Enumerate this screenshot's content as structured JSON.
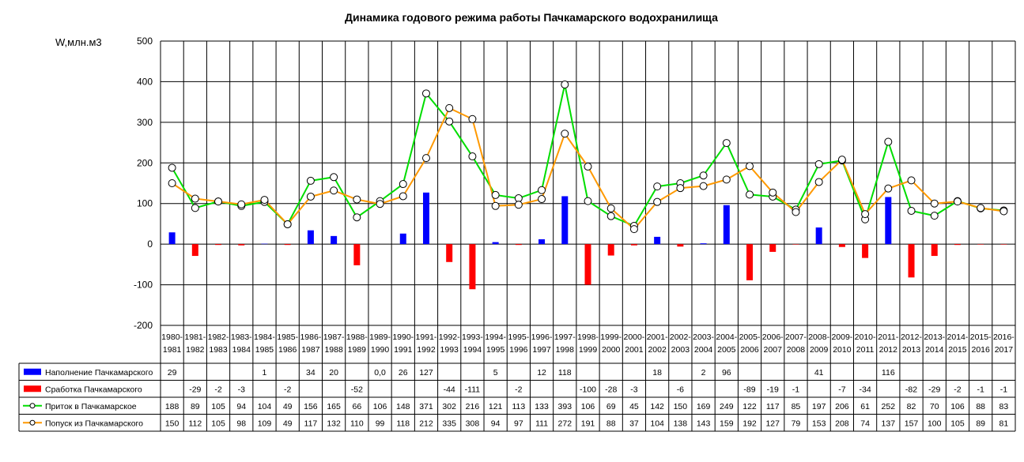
{
  "chart_data": {
    "type": "bar+line",
    "title": "Динамика годового режима работы Пачкамарского водохранилища",
    "ylabel": "W,млн.м3",
    "ylim": [
      -200,
      500
    ],
    "yticks": [
      500,
      400,
      300,
      200,
      100,
      0,
      -100,
      -200
    ],
    "grid": true,
    "legend_placement": "data-table-left",
    "categories": [
      [
        "1980-",
        "1981"
      ],
      [
        "1981-",
        "1982"
      ],
      [
        "1982-",
        "1983"
      ],
      [
        "1983-",
        "1984"
      ],
      [
        "1984-",
        "1985"
      ],
      [
        "1985-",
        "1986"
      ],
      [
        "1986-",
        "1987"
      ],
      [
        "1987-",
        "1988"
      ],
      [
        "1988-",
        "1989"
      ],
      [
        "1989-",
        "1990"
      ],
      [
        "1990-",
        "1991"
      ],
      [
        "1991-",
        "1992"
      ],
      [
        "1992-",
        "1993"
      ],
      [
        "1993-",
        "1994"
      ],
      [
        "1994-",
        "1995"
      ],
      [
        "1995-",
        "1996"
      ],
      [
        "1996-",
        "1997"
      ],
      [
        "1997-",
        "1998"
      ],
      [
        "1998-",
        "1999"
      ],
      [
        "1999-",
        "2000"
      ],
      [
        "2000-",
        "2001"
      ],
      [
        "2001-",
        "2002"
      ],
      [
        "2002-",
        "2003"
      ],
      [
        "2003-",
        "2004"
      ],
      [
        "2004-",
        "2005"
      ],
      [
        "2005-",
        "2006"
      ],
      [
        "2006-",
        "2007"
      ],
      [
        "2007-",
        "2008"
      ],
      [
        "2008-",
        "2009"
      ],
      [
        "2009-",
        "2010"
      ],
      [
        "2010-",
        "2011"
      ],
      [
        "2011-",
        "2012"
      ],
      [
        "2012-",
        "2013"
      ],
      [
        "2013-",
        "2014"
      ],
      [
        "2014-",
        "2015"
      ],
      [
        "2015-",
        "2016"
      ],
      [
        "2016-",
        "2017"
      ]
    ],
    "series": [
      {
        "name": "Наполнение Пачкамарского",
        "kind": "bar",
        "color": "#0000ff",
        "values": [
          29,
          null,
          null,
          null,
          1,
          null,
          34,
          20,
          null,
          0.0,
          26,
          127,
          null,
          null,
          5,
          null,
          12,
          118,
          null,
          null,
          null,
          18,
          null,
          2,
          96,
          null,
          null,
          null,
          41,
          null,
          null,
          116,
          null,
          null,
          null,
          null,
          null
        ],
        "labels": [
          "29",
          "",
          "",
          "",
          "1",
          "",
          "34",
          "20",
          "",
          "0,0",
          "26",
          "127",
          "",
          "",
          "5",
          "",
          "12",
          "118",
          "",
          "",
          "",
          "18",
          "",
          "2",
          "96",
          "",
          "",
          "",
          "41",
          "",
          "",
          "116",
          "",
          "",
          "",
          "",
          ""
        ]
      },
      {
        "name": "Сработка Пачкамарского",
        "kind": "bar",
        "color": "#ff0000",
        "values": [
          null,
          -29,
          -2,
          -3,
          null,
          -2,
          null,
          null,
          -52,
          null,
          null,
          null,
          -44,
          -111,
          null,
          -2,
          null,
          null,
          -100,
          -28,
          -3,
          null,
          -6,
          null,
          null,
          -89,
          -19,
          -1,
          null,
          -7,
          -34,
          null,
          -82,
          -29,
          -2,
          -1,
          -1
        ],
        "labels": [
          "",
          "-29",
          "-2",
          "-3",
          "",
          "-2",
          "",
          "",
          "-52",
          "",
          "",
          "",
          "-44",
          "-111",
          "",
          "-2",
          "",
          "",
          "-100",
          "-28",
          "-3",
          "",
          "-6",
          "",
          "",
          "-89",
          "-19",
          "-1",
          "",
          "-7",
          "-34",
          "",
          "-82",
          "-29",
          "-2",
          "-1",
          "-1"
        ]
      },
      {
        "name": "Приток в Пачкамарское",
        "kind": "line",
        "color": "#00dd00",
        "values": [
          188,
          89,
          105,
          94,
          104,
          49,
          156,
          165,
          66,
          106,
          148,
          371,
          302,
          216,
          121,
          113,
          133,
          393,
          106,
          69,
          45,
          142,
          150,
          169,
          249,
          122,
          117,
          85,
          197,
          206,
          61,
          252,
          82,
          70,
          106,
          88,
          83
        ],
        "labels": [
          "188",
          "89",
          "105",
          "94",
          "104",
          "49",
          "156",
          "165",
          "66",
          "106",
          "148",
          "371",
          "302",
          "216",
          "121",
          "113",
          "133",
          "393",
          "106",
          "69",
          "45",
          "142",
          "150",
          "169",
          "249",
          "122",
          "117",
          "85",
          "197",
          "206",
          "61",
          "252",
          "82",
          "70",
          "106",
          "88",
          "83"
        ]
      },
      {
        "name": "Попуск из Пачкамарского",
        "kind": "line",
        "color": "#ff9900",
        "values": [
          150,
          112,
          105,
          98,
          109,
          49,
          117,
          132,
          110,
          99,
          118,
          212,
          335,
          308,
          94,
          97,
          111,
          272,
          191,
          88,
          37,
          104,
          138,
          143,
          159,
          192,
          127,
          79,
          153,
          208,
          74,
          137,
          157,
          100,
          105,
          89,
          81
        ],
        "labels": [
          "150",
          "112",
          "105",
          "98",
          "109",
          "49",
          "117",
          "132",
          "110",
          "99",
          "118",
          "212",
          "335",
          "308",
          "94",
          "97",
          "111",
          "272",
          "191",
          "88",
          "37",
          "104",
          "138",
          "143",
          "159",
          "192",
          "127",
          "79",
          "153",
          "208",
          "74",
          "137",
          "157",
          "100",
          "105",
          "89",
          "81"
        ]
      }
    ]
  }
}
